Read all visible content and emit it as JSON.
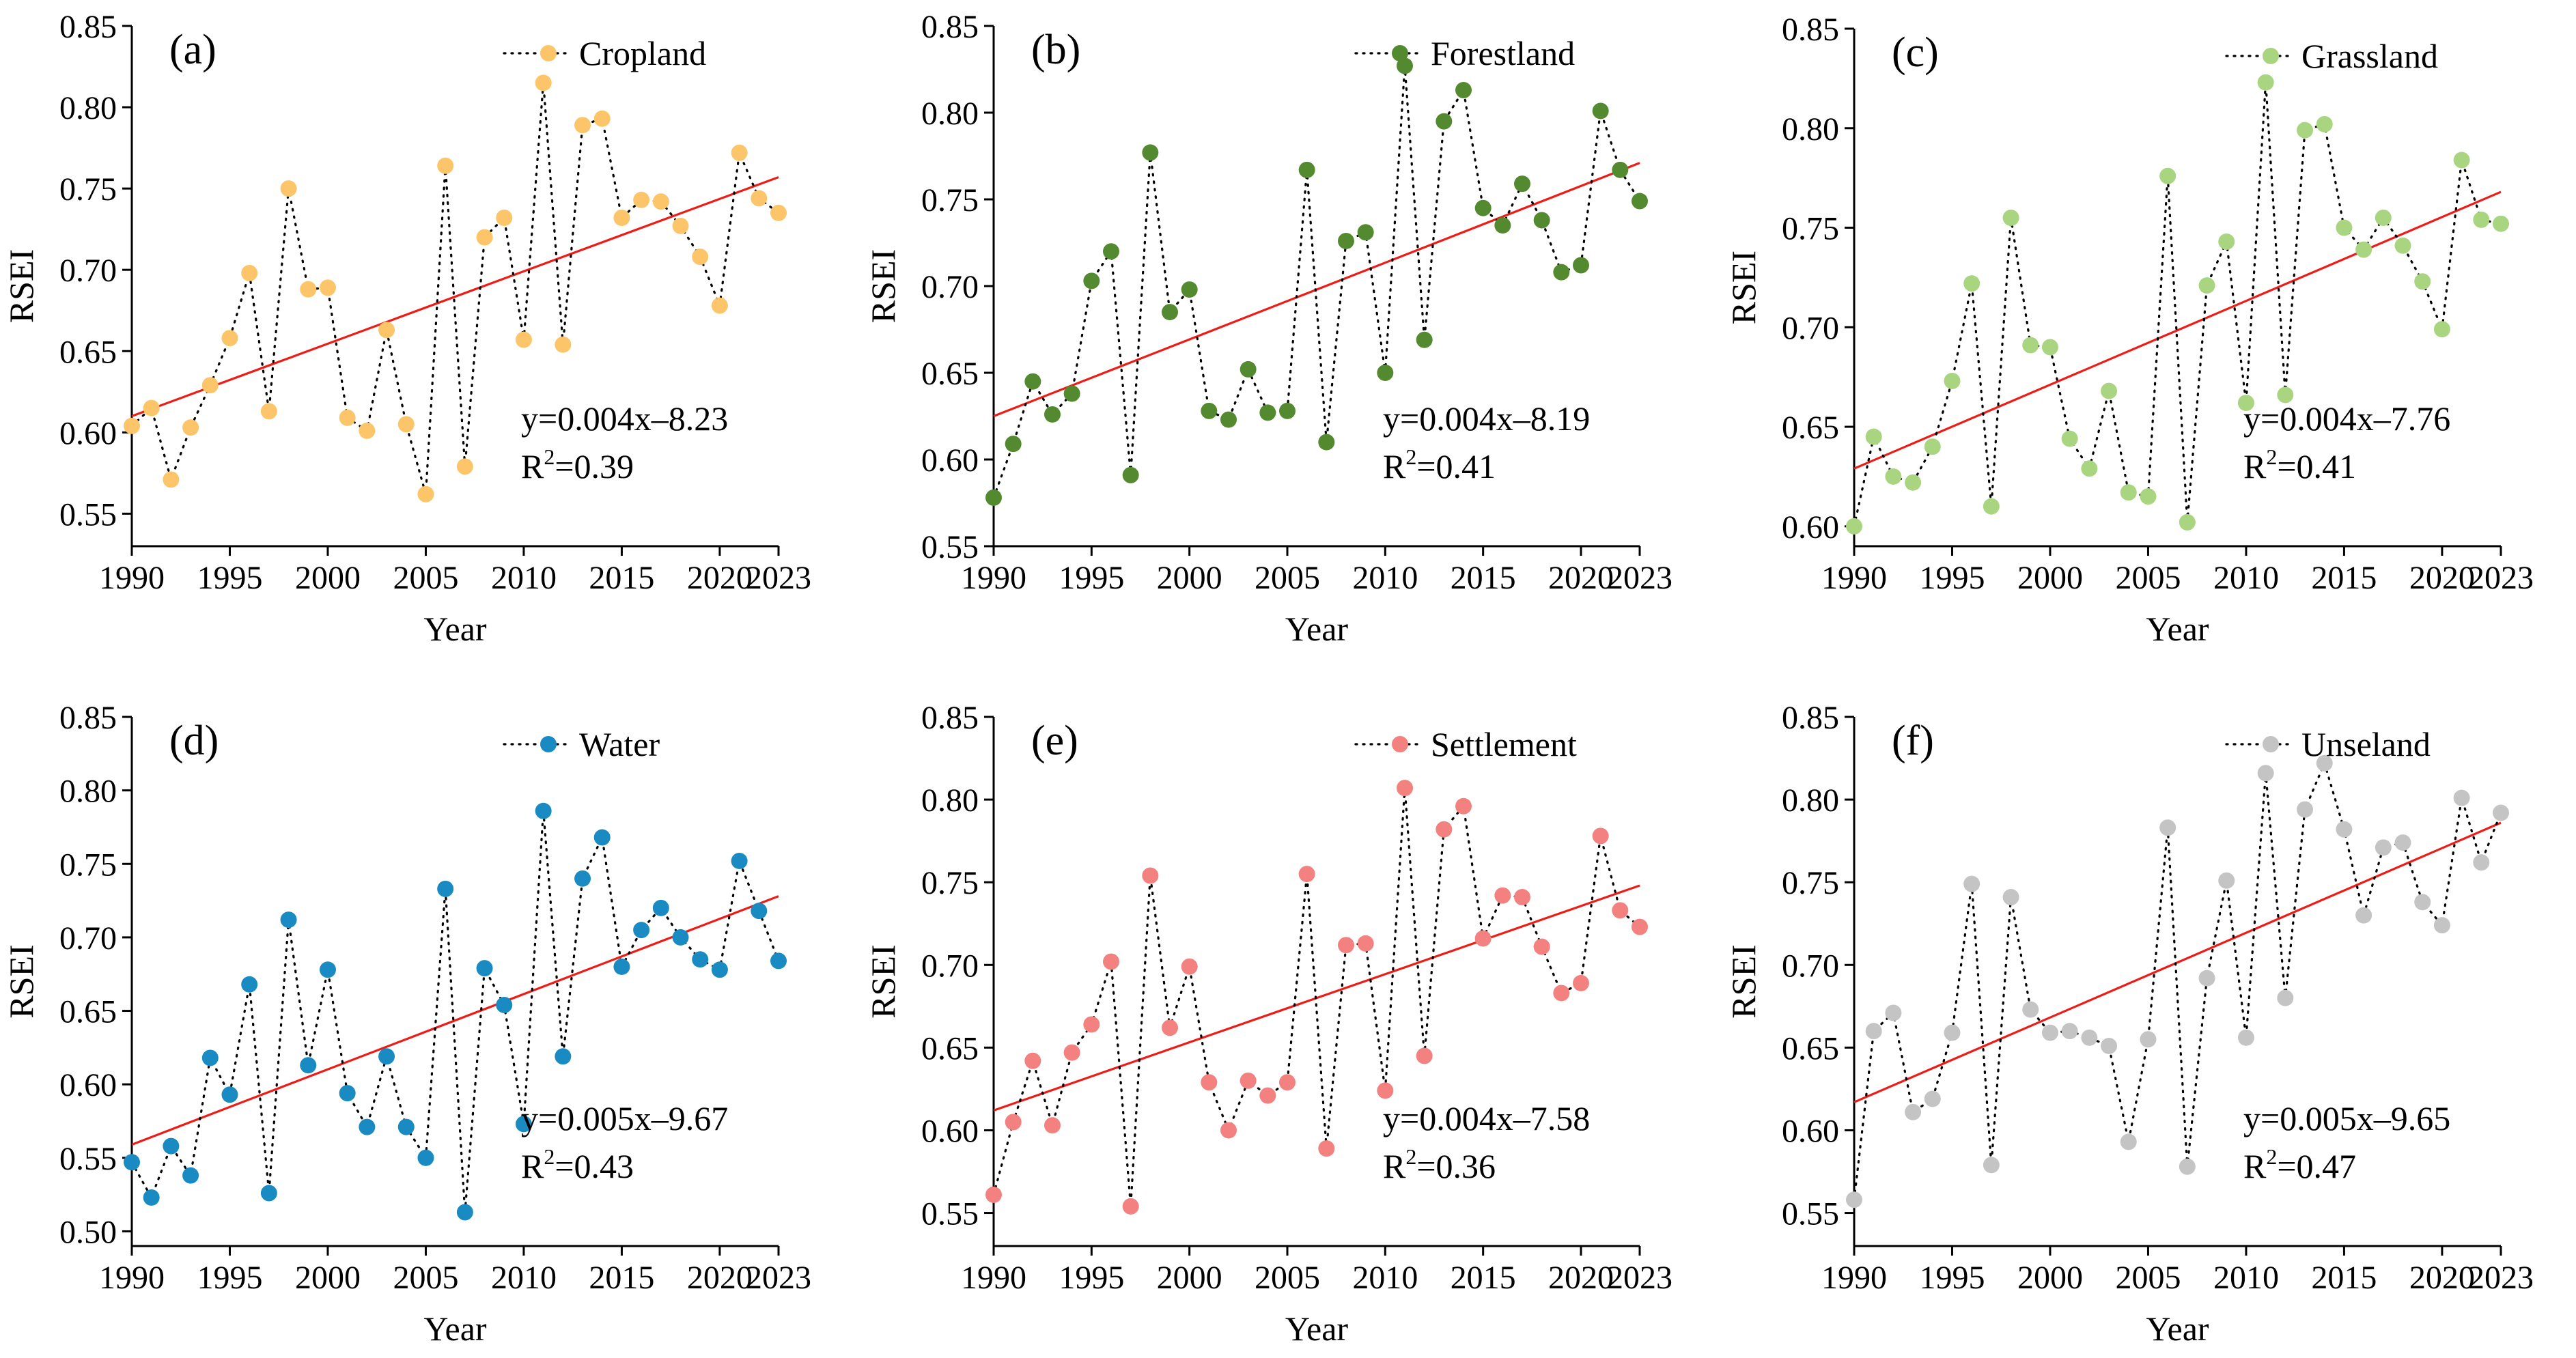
{
  "chart_data": [
    {
      "type": "scatter",
      "panel_label": "(a)",
      "legend": "Cropland",
      "color": "#fcc56a",
      "xlabel": "Year",
      "ylabel": "RSEI",
      "xlim": [
        1990,
        2023
      ],
      "ylim": [
        0.53,
        0.85
      ],
      "yticks": [
        "0.55",
        "0.60",
        "0.65",
        "0.70",
        "0.75",
        "0.80",
        "0.85"
      ],
      "xticks": [
        "1990",
        "1995",
        "2000",
        "2005",
        "2010",
        "2015",
        "2020",
        "2023"
      ],
      "x": [
        1990,
        1991,
        1992,
        1993,
        1994,
        1995,
        1996,
        1997,
        1998,
        1999,
        2000,
        2001,
        2002,
        2003,
        2004,
        2005,
        2006,
        2007,
        2008,
        2009,
        2010,
        2011,
        2012,
        2013,
        2014,
        2015,
        2016,
        2017,
        2018,
        2019,
        2020,
        2021,
        2022,
        2023
      ],
      "values": [
        0.604,
        0.615,
        0.571,
        0.603,
        0.629,
        0.658,
        0.698,
        0.613,
        0.75,
        0.688,
        0.689,
        0.609,
        0.601,
        0.663,
        0.605,
        0.562,
        0.764,
        0.579,
        0.72,
        0.732,
        0.657,
        0.815,
        0.654,
        0.789,
        0.793,
        0.732,
        0.743,
        0.742,
        0.727,
        0.708,
        0.678,
        0.772,
        0.744,
        0.735
      ],
      "equation": "y=0.004x–8.23",
      "r2_prefix": "R",
      "r2_sup": "2",
      "r2_value": "=0.39",
      "fit_endpoints": [
        0.61,
        0.757
      ]
    },
    {
      "type": "scatter",
      "panel_label": "(b)",
      "legend": "Forestland",
      "color": "#548a2f",
      "xlabel": "Year",
      "ylabel": "RSEI",
      "xlim": [
        1990,
        2023
      ],
      "ylim": [
        0.55,
        0.85
      ],
      "yticks": [
        "0.55",
        "0.60",
        "0.65",
        "0.70",
        "0.75",
        "0.80",
        "0.85"
      ],
      "xticks": [
        "1990",
        "1995",
        "2000",
        "2005",
        "2010",
        "2015",
        "2020",
        "2023"
      ],
      "x": [
        1990,
        1991,
        1992,
        1993,
        1994,
        1995,
        1996,
        1997,
        1998,
        1999,
        2000,
        2001,
        2002,
        2003,
        2004,
        2005,
        2006,
        2007,
        2008,
        2009,
        2010,
        2011,
        2012,
        2013,
        2014,
        2015,
        2016,
        2017,
        2018,
        2019,
        2020,
        2021,
        2022,
        2023
      ],
      "values": [
        0.578,
        0.609,
        0.645,
        0.626,
        0.638,
        0.703,
        0.72,
        0.591,
        0.777,
        0.685,
        0.698,
        0.628,
        0.623,
        0.652,
        0.627,
        0.628,
        0.767,
        0.61,
        0.726,
        0.731,
        0.65,
        0.827,
        0.669,
        0.795,
        0.813,
        0.745,
        0.735,
        0.759,
        0.738,
        0.708,
        0.712,
        0.801,
        0.767,
        0.749
      ],
      "equation": "y=0.004x–8.19",
      "r2_prefix": "R",
      "r2_sup": "2",
      "r2_value": "=0.41",
      "fit_endpoints": [
        0.625,
        0.771
      ]
    },
    {
      "type": "scatter",
      "panel_label": "(c)",
      "legend": "Grassland",
      "color": "#a9d580",
      "xlabel": "Year",
      "ylabel": "RSEI",
      "xlim": [
        1990,
        2023
      ],
      "ylim": [
        0.59,
        0.85
      ],
      "yticks": [
        "0.60",
        "0.65",
        "0.70",
        "0.75",
        "0.80",
        "0.85"
      ],
      "xticks": [
        "1990",
        "1995",
        "2000",
        "2005",
        "2010",
        "2015",
        "2020",
        "2023"
      ],
      "x": [
        1990,
        1991,
        1992,
        1993,
        1994,
        1995,
        1996,
        1997,
        1998,
        1999,
        2000,
        2001,
        2002,
        2003,
        2004,
        2005,
        2006,
        2007,
        2008,
        2009,
        2010,
        2011,
        2012,
        2013,
        2014,
        2015,
        2016,
        2017,
        2018,
        2019,
        2020,
        2021,
        2022,
        2023
      ],
      "values": [
        0.6,
        0.645,
        0.625,
        0.622,
        0.64,
        0.673,
        0.722,
        0.61,
        0.755,
        0.691,
        0.69,
        0.644,
        0.629,
        0.668,
        0.617,
        0.615,
        0.776,
        0.602,
        0.721,
        0.743,
        0.662,
        0.823,
        0.666,
        0.799,
        0.802,
        0.75,
        0.739,
        0.755,
        0.741,
        0.723,
        0.699,
        0.784,
        0.754,
        0.752
      ],
      "equation": "y=0.004x–7.76",
      "r2_prefix": "R",
      "r2_sup": "2",
      "r2_value": "=0.41",
      "fit_endpoints": [
        0.629,
        0.768
      ]
    },
    {
      "type": "scatter",
      "panel_label": "(d)",
      "legend": "Water",
      "color": "#1a8bc2",
      "xlabel": "Year",
      "ylabel": "RSEI",
      "xlim": [
        1990,
        2023
      ],
      "ylim": [
        0.49,
        0.85
      ],
      "yticks": [
        "0.50",
        "0.55",
        "0.60",
        "0.65",
        "0.70",
        "0.75",
        "0.80",
        "0.85"
      ],
      "xticks": [
        "1990",
        "1995",
        "2000",
        "2005",
        "2010",
        "2015",
        "2020",
        "2023"
      ],
      "x": [
        1990,
        1991,
        1992,
        1993,
        1994,
        1995,
        1996,
        1997,
        1998,
        1999,
        2000,
        2001,
        2002,
        2003,
        2004,
        2005,
        2006,
        2007,
        2008,
        2009,
        2010,
        2011,
        2012,
        2013,
        2014,
        2015,
        2016,
        2017,
        2018,
        2019,
        2020,
        2021,
        2022,
        2023
      ],
      "values": [
        0.547,
        0.523,
        0.558,
        0.538,
        0.618,
        0.593,
        0.668,
        0.526,
        0.712,
        0.613,
        0.678,
        0.594,
        0.571,
        0.619,
        0.571,
        0.55,
        0.733,
        0.513,
        0.679,
        0.654,
        0.573,
        0.786,
        0.619,
        0.74,
        0.768,
        0.68,
        0.705,
        0.72,
        0.7,
        0.685,
        0.678,
        0.752,
        0.718,
        0.684
      ],
      "equation": "y=0.005x–9.67",
      "r2_prefix": "R",
      "r2_sup": "2",
      "r2_value": "=0.43",
      "fit_endpoints": [
        0.559,
        0.728
      ]
    },
    {
      "type": "scatter",
      "panel_label": "(e)",
      "legend": "Settlement",
      "color": "#f28180",
      "xlabel": "Year",
      "ylabel": "RSEI",
      "xlim": [
        1990,
        2023
      ],
      "ylim": [
        0.53,
        0.85
      ],
      "yticks": [
        "0.55",
        "0.60",
        "0.65",
        "0.70",
        "0.75",
        "0.80",
        "0.85"
      ],
      "xticks": [
        "1990",
        "1995",
        "2000",
        "2005",
        "2010",
        "2015",
        "2020",
        "2023"
      ],
      "x": [
        1990,
        1991,
        1992,
        1993,
        1994,
        1995,
        1996,
        1997,
        1998,
        1999,
        2000,
        2001,
        2002,
        2003,
        2004,
        2005,
        2006,
        2007,
        2008,
        2009,
        2010,
        2011,
        2012,
        2013,
        2014,
        2015,
        2016,
        2017,
        2018,
        2019,
        2020,
        2021,
        2022,
        2023
      ],
      "values": [
        0.561,
        0.605,
        0.642,
        0.603,
        0.647,
        0.664,
        0.702,
        0.554,
        0.754,
        0.662,
        0.699,
        0.629,
        0.6,
        0.63,
        0.621,
        0.629,
        0.755,
        0.589,
        0.712,
        0.713,
        0.624,
        0.807,
        0.645,
        0.782,
        0.796,
        0.716,
        0.742,
        0.741,
        0.711,
        0.683,
        0.689,
        0.778,
        0.733,
        0.723
      ],
      "equation": "y=0.004x–7.58",
      "r2_prefix": "R",
      "r2_sup": "2",
      "r2_value": "=0.36",
      "fit_endpoints": [
        0.612,
        0.748
      ]
    },
    {
      "type": "scatter",
      "panel_label": "(f)",
      "legend": "Unseland",
      "color": "#c4c4c4",
      "xlabel": "Year",
      "ylabel": "RSEI",
      "xlim": [
        1990,
        2023
      ],
      "ylim": [
        0.53,
        0.85
      ],
      "yticks": [
        "0.55",
        "0.60",
        "0.65",
        "0.70",
        "0.75",
        "0.80",
        "0.85"
      ],
      "xticks": [
        "1990",
        "1995",
        "2000",
        "2005",
        "2010",
        "2015",
        "2020",
        "2023"
      ],
      "x": [
        1990,
        1991,
        1992,
        1993,
        1994,
        1995,
        1996,
        1997,
        1998,
        1999,
        2000,
        2001,
        2002,
        2003,
        2004,
        2005,
        2006,
        2007,
        2008,
        2009,
        2010,
        2011,
        2012,
        2013,
        2014,
        2015,
        2016,
        2017,
        2018,
        2019,
        2020,
        2021,
        2022,
        2023
      ],
      "values": [
        0.558,
        0.66,
        0.671,
        0.611,
        0.619,
        0.659,
        0.749,
        0.579,
        0.741,
        0.673,
        0.659,
        0.66,
        0.656,
        0.651,
        0.593,
        0.655,
        0.783,
        0.578,
        0.692,
        0.751,
        0.656,
        0.816,
        0.68,
        0.794,
        0.822,
        0.782,
        0.73,
        0.771,
        0.774,
        0.738,
        0.724,
        0.801,
        0.762,
        0.792
      ],
      "equation": "y=0.005x–9.65",
      "r2_prefix": "R",
      "r2_sup": "2",
      "r2_value": "=0.47",
      "fit_endpoints": [
        0.617,
        0.786
      ]
    }
  ]
}
